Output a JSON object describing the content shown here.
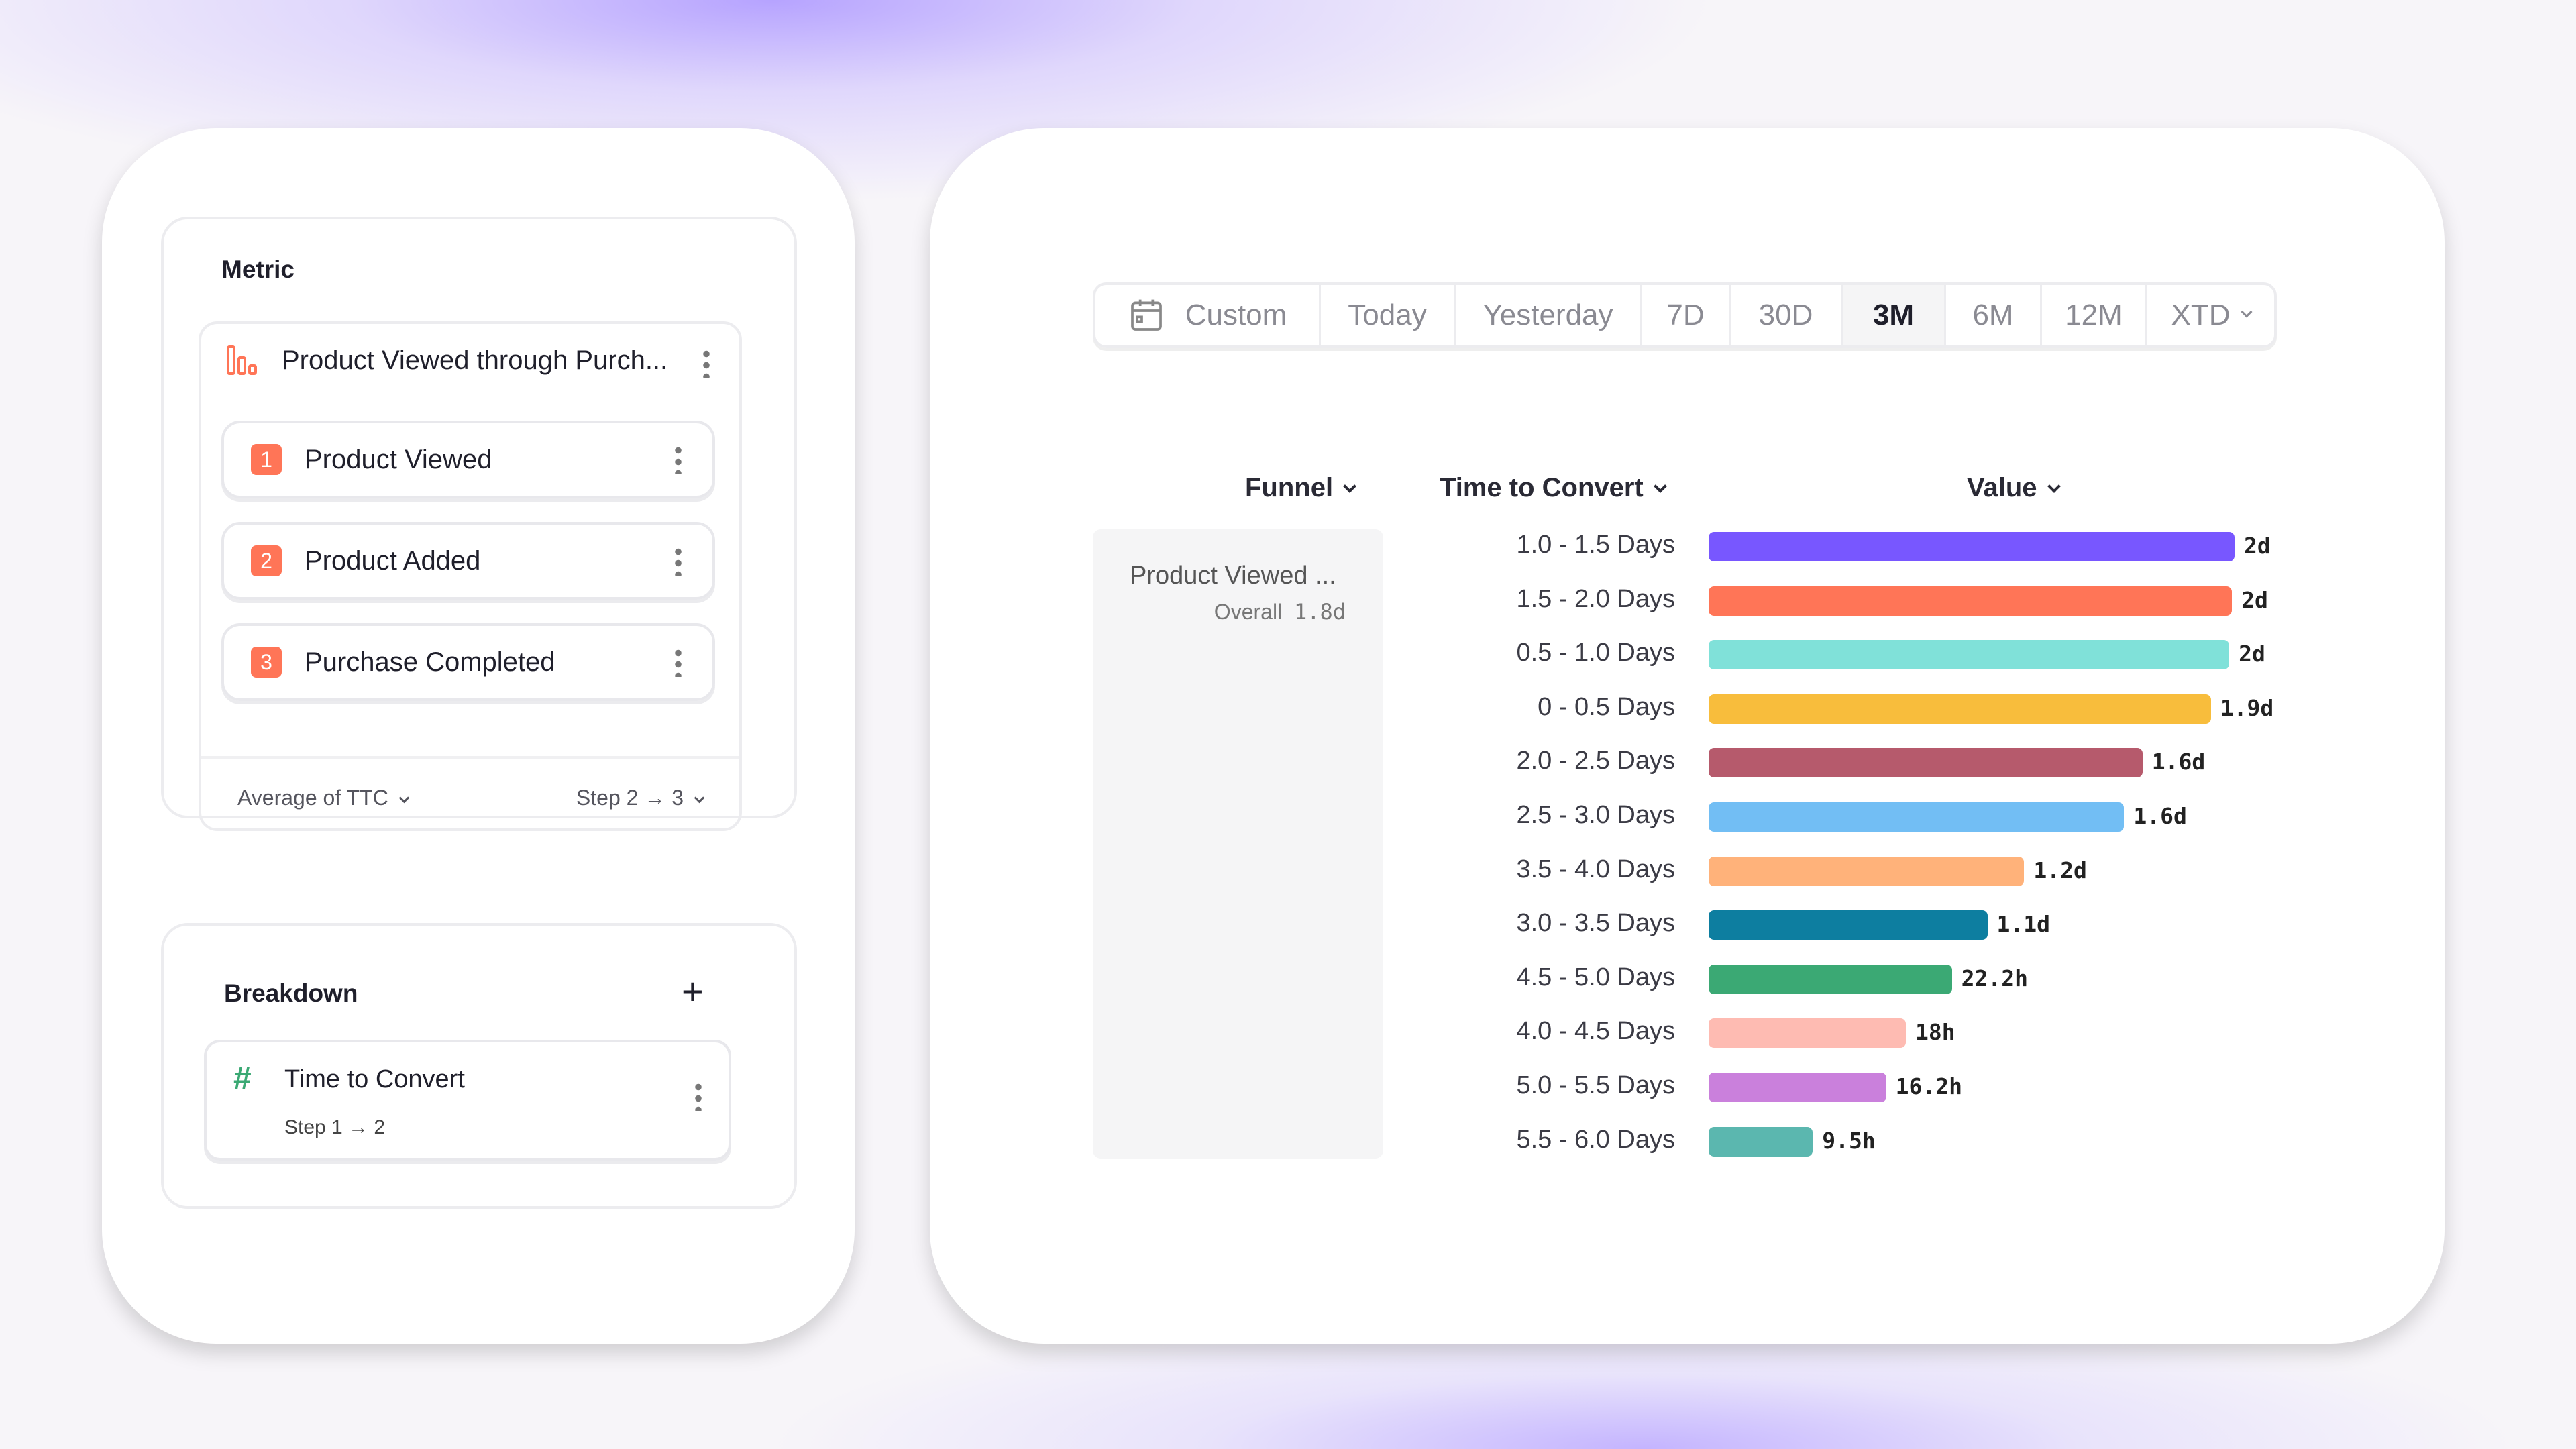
{
  "metric": {
    "title": "Metric",
    "funnel_name": "Product Viewed through Purch...",
    "steps": [
      {
        "num": "1",
        "label": "Product Viewed"
      },
      {
        "num": "2",
        "label": "Product Added"
      },
      {
        "num": "3",
        "label": "Purchase Completed"
      }
    ],
    "aggregation": "Average of TTC",
    "step_range": "Step 2 → 3"
  },
  "breakdown": {
    "title": "Breakdown",
    "item_label": "Time to Convert",
    "item_sub": "Step 1 → 2"
  },
  "date_range": {
    "options": [
      "Custom",
      "Today",
      "Yesterday",
      "7D",
      "30D",
      "3M",
      "6M",
      "12M",
      "XTD"
    ],
    "selected": "3M"
  },
  "table": {
    "headers": {
      "funnel": "Funnel",
      "time": "Time to Convert",
      "value": "Value"
    },
    "funnel_name": "Product Viewed ...",
    "overall_label": "Overall",
    "overall_value": "1.8d"
  },
  "chart_data": {
    "type": "bar",
    "orientation": "horizontal",
    "xlim": [
      0,
      2
    ],
    "unit": "days",
    "categories": [
      "1.0 - 1.5 Days",
      "1.5 - 2.0 Days",
      "0.5 - 1.0 Days",
      "0 - 0.5 Days",
      "2.0 - 2.5 Days",
      "2.5 - 3.0 Days",
      "3.5 - 4.0 Days",
      "3.0 - 3.5 Days",
      "4.5 - 5.0 Days",
      "4.0 - 4.5 Days",
      "5.0 - 5.5 Days",
      "5.5 - 6.0 Days"
    ],
    "values": [
      2.0,
      1.99,
      1.98,
      1.91,
      1.65,
      1.58,
      1.2,
      1.06,
      0.925,
      0.75,
      0.675,
      0.396
    ],
    "data_labels": [
      "2d",
      "2d",
      "2d",
      "1.9d",
      "1.6d",
      "1.6d",
      "1.2d",
      "1.1d",
      "22.2h",
      "18h",
      "16.2h",
      "9.5h"
    ],
    "colors": [
      "#7857ff",
      "#ff7557",
      "#80e1d9",
      "#f8bd3c",
      "#b65a6c",
      "#72bef4",
      "#ffb27a",
      "#0d7ea0",
      "#3ba974",
      "#febbb2",
      "#ca80dc",
      "#5bb7af"
    ]
  }
}
